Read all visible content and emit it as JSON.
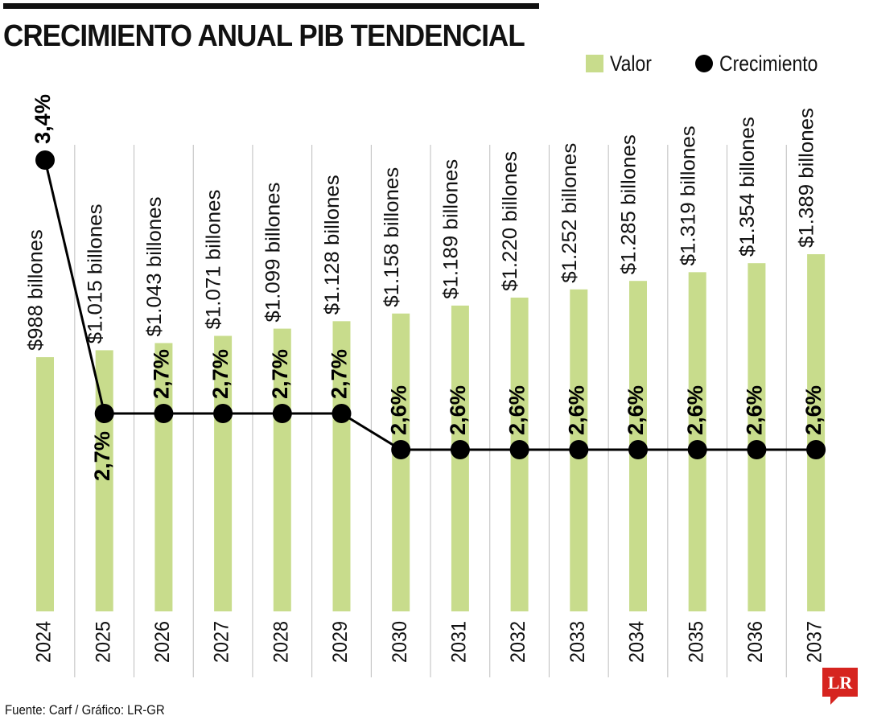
{
  "title": "CRECIMIENTO ANUAL PIB TENDENCIAL",
  "legend": {
    "value_label": "Valor",
    "growth_label": "Crecimiento"
  },
  "source": "Fuente: Carf / Gráfico: LR-GR",
  "logo_text": "LR",
  "colors": {
    "bar": "#c8dc8c",
    "line": "#000000",
    "grid": "#bdbdbd",
    "logo": "#d6241f"
  },
  "chart_data": {
    "type": "bar",
    "title": "CRECIMIENTO ANUAL PIB TENDENCIAL",
    "xlabel": "",
    "ylabel": "",
    "categories": [
      "2024",
      "2025",
      "2026",
      "2027",
      "2028",
      "2029",
      "2030",
      "2031",
      "2032",
      "2033",
      "2034",
      "2035",
      "2036",
      "2037"
    ],
    "series": [
      {
        "name": "Valor",
        "type": "bar",
        "values": [
          988,
          1015,
          1043,
          1071,
          1099,
          1128,
          1158,
          1189,
          1220,
          1252,
          1285,
          1319,
          1354,
          1389
        ],
        "labels": [
          "$988 billones",
          "$1.015 billones",
          "$1.043 billones",
          "$1.071 billones",
          "$1.099 billones",
          "$1.128 billones",
          "$1.158 billones",
          "$1.189 billones",
          "$1.220 billones",
          "$1.252 billones",
          "$1.285 billones",
          "$1.319 billones",
          "$1.354 billones",
          "$1.389 billones"
        ]
      },
      {
        "name": "Crecimiento",
        "type": "line",
        "values": [
          3.4,
          2.7,
          2.7,
          2.7,
          2.7,
          2.7,
          2.6,
          2.6,
          2.6,
          2.6,
          2.6,
          2.6,
          2.6,
          2.6
        ],
        "labels": [
          "3,4%",
          "2,7%",
          "2,7%",
          "2,7%",
          "2,7%",
          "2,7%",
          "2,6%",
          "2,6%",
          "2,6%",
          "2,6%",
          "2,6%",
          "2,6%",
          "2,6%",
          "2,6%"
        ]
      }
    ],
    "grid": true,
    "legend_position": "top-right"
  }
}
